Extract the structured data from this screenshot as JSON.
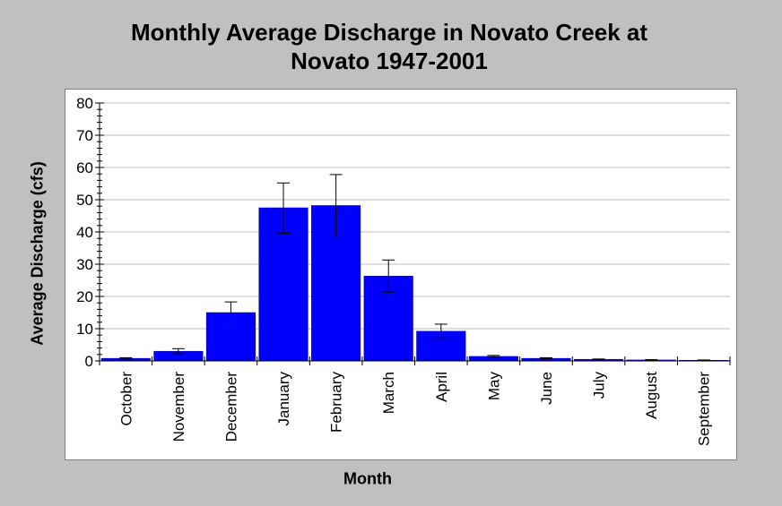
{
  "chart_data": {
    "type": "bar",
    "title_lines": [
      "Monthly Average Discharge in Novato Creek at",
      "Novato 1947-2001"
    ],
    "xlabel": "Month",
    "ylabel": "Average Discharge (cfs)",
    "ylim": [
      0,
      80
    ],
    "yticks": [
      "0",
      "10",
      "20",
      "30",
      "40",
      "50",
      "60",
      "70",
      "80"
    ],
    "grid": true,
    "categories": [
      "October",
      "November",
      "December",
      "January",
      "February",
      "March",
      "April",
      "May",
      "June",
      "July",
      "August",
      "September"
    ],
    "values": [
      0.8,
      3.0,
      15.0,
      47.5,
      48.2,
      26.3,
      9.2,
      1.4,
      0.8,
      0.5,
      0.3,
      0.2
    ],
    "error_low": [
      0.5,
      2.2,
      11.5,
      39.6,
      38.7,
      21.3,
      7.0,
      1.1,
      0.6,
      0.4,
      0.2,
      0.1
    ],
    "error_high": [
      1.0,
      3.8,
      18.3,
      55.2,
      57.8,
      31.3,
      11.4,
      1.7,
      1.0,
      0.6,
      0.4,
      0.3
    ],
    "bar_color": "#0000ff"
  }
}
